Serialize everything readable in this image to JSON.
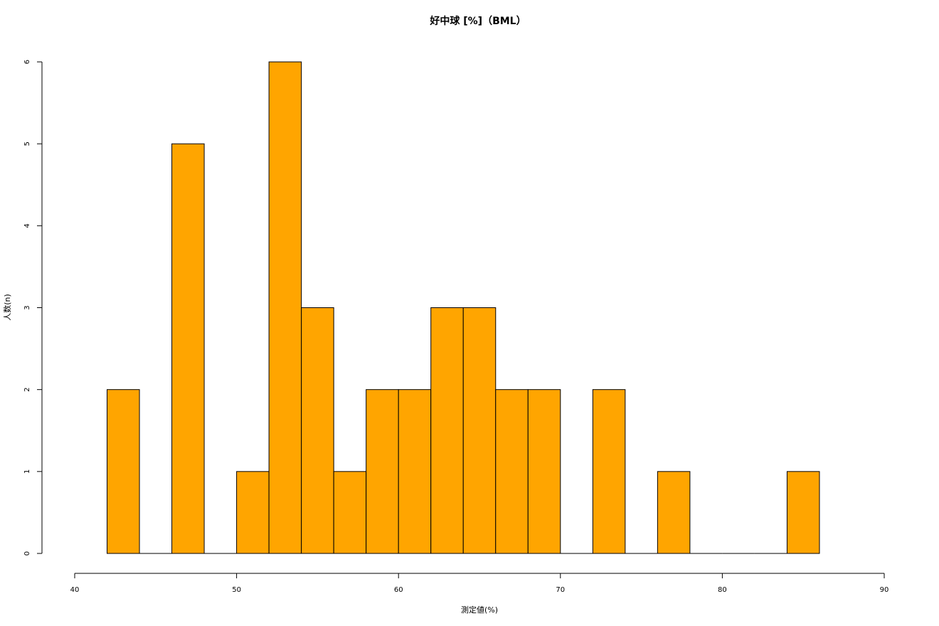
{
  "chart_data": {
    "type": "bar",
    "title": "好中球 [%]（BML）",
    "xlabel": "測定値(%)",
    "ylabel": "人数(n)",
    "bar_color": "#FFA500",
    "bar_edge_color": "#000000",
    "bin_width": 2,
    "bins": [
      {
        "start": 42,
        "end": 44,
        "count": 2
      },
      {
        "start": 44,
        "end": 46,
        "count": 0
      },
      {
        "start": 46,
        "end": 48,
        "count": 5
      },
      {
        "start": 48,
        "end": 50,
        "count": 0
      },
      {
        "start": 50,
        "end": 52,
        "count": 1
      },
      {
        "start": 52,
        "end": 54,
        "count": 6
      },
      {
        "start": 54,
        "end": 56,
        "count": 3
      },
      {
        "start": 56,
        "end": 58,
        "count": 1
      },
      {
        "start": 58,
        "end": 60,
        "count": 2
      },
      {
        "start": 60,
        "end": 62,
        "count": 2
      },
      {
        "start": 62,
        "end": 64,
        "count": 3
      },
      {
        "start": 64,
        "end": 66,
        "count": 3
      },
      {
        "start": 66,
        "end": 68,
        "count": 2
      },
      {
        "start": 68,
        "end": 70,
        "count": 2
      },
      {
        "start": 70,
        "end": 72,
        "count": 0
      },
      {
        "start": 72,
        "end": 74,
        "count": 2
      },
      {
        "start": 74,
        "end": 76,
        "count": 0
      },
      {
        "start": 76,
        "end": 78,
        "count": 1
      },
      {
        "start": 78,
        "end": 80,
        "count": 0
      },
      {
        "start": 80,
        "end": 82,
        "count": 0
      },
      {
        "start": 82,
        "end": 84,
        "count": 0
      },
      {
        "start": 84,
        "end": 86,
        "count": 1
      }
    ],
    "xlim": [
      40,
      90
    ],
    "ylim": [
      0,
      6
    ],
    "x_ticks": [
      40,
      50,
      60,
      70,
      80,
      90
    ],
    "y_ticks": [
      0,
      1,
      2,
      3,
      4,
      5,
      6
    ],
    "grid": false,
    "legend": "none"
  }
}
